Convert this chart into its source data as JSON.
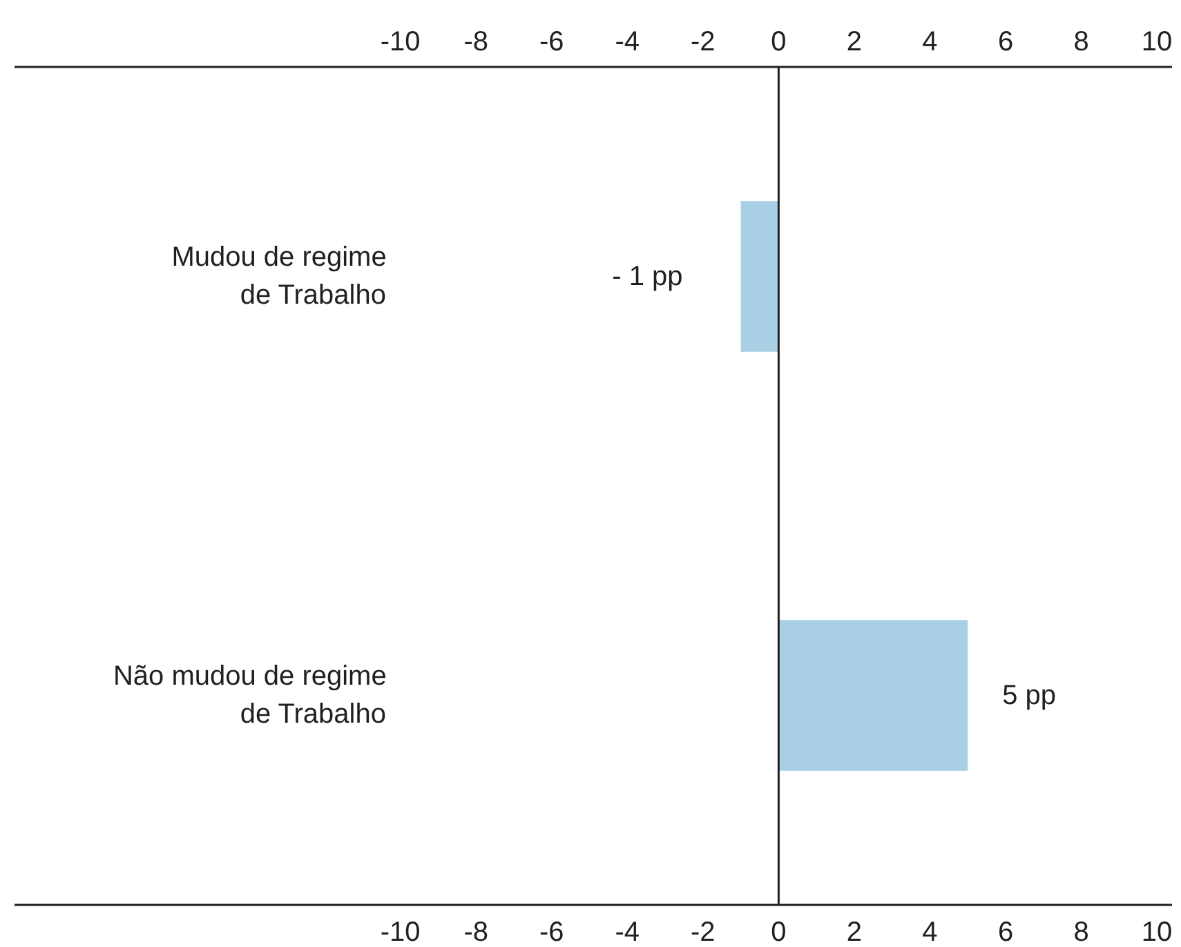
{
  "chart_data": {
    "type": "bar",
    "orientation": "horizontal",
    "categories": [
      "Mudou de regime\nde Trabalho",
      "Não mudou de regime\nde Trabalho"
    ],
    "values": [
      -1,
      5
    ],
    "color": "#a8cfe4",
    "value_labels": [
      "- 1 pp",
      "5 pp"
    ],
    "xlim": [
      -20.2,
      10.4
    ],
    "xticks": [
      -10,
      -8,
      -6,
      -4,
      -2,
      0,
      2,
      4,
      6,
      8,
      10
    ],
    "x2lim": [
      -20.2,
      10.4
    ],
    "x2ticks": [
      -10,
      -8,
      -6,
      -4,
      -2,
      0,
      2,
      4,
      6,
      8,
      10
    ],
    "ref_lines": [
      {
        "axis": "x",
        "value": 0,
        "color": "#231f20"
      }
    ],
    "grid": false
  }
}
